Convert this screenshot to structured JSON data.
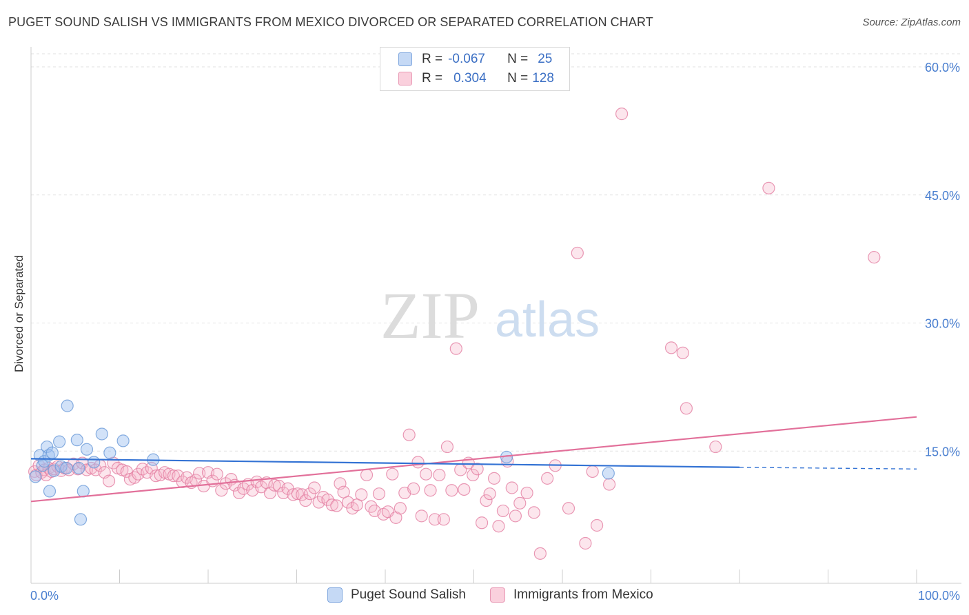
{
  "title": "PUGET SOUND SALISH VS IMMIGRANTS FROM MEXICO DIVORCED OR SEPARATED CORRELATION CHART",
  "source": "Source: ZipAtlas.com",
  "watermark": {
    "zip": "ZIP",
    "atlas": "atlas"
  },
  "legend": {
    "rows": [
      {
        "r_label": "R =",
        "r_value": "-0.067",
        "n_label": "N =",
        "n_value": "25",
        "color": "#9cbff0",
        "border": "#6a9ad8"
      },
      {
        "r_label": "R =",
        "r_value": "0.304",
        "n_label": "N =",
        "n_value": "128",
        "color": "#f7b8cc",
        "border": "#e888a8"
      }
    ]
  },
  "bottom_legend": [
    {
      "label": "Puget Sound Salish",
      "color": "#b8d0f2",
      "border": "#7ea6de"
    },
    {
      "label": "Immigrants from Mexico",
      "color": "#f7c5d5",
      "border": "#e898b4"
    }
  ],
  "chart_data": {
    "type": "scatter",
    "title": "PUGET SOUND SALISH VS IMMIGRANTS FROM MEXICO DIVORCED OR SEPARATED CORRELATION CHART",
    "xlabel": "",
    "ylabel": "Divorced or Separated",
    "xlim": [
      0,
      100
    ],
    "ylim": [
      0,
      60
    ],
    "x_tick_labels": [
      "0.0%",
      "100.0%"
    ],
    "y_ticks": [
      15,
      30,
      45,
      60
    ],
    "y_tick_labels": [
      "15.0%",
      "30.0%",
      "45.0%",
      "60.0%"
    ],
    "grid": true,
    "legend_position": "top-center",
    "series": [
      {
        "name": "Puget Sound Salish",
        "color": "#6a9ad8",
        "fill": "rgba(156,191,240,0.45)",
        "trend": {
          "x0": 0,
          "y0": 14.1,
          "x1": 80,
          "y1": 13.1,
          "dash_to": 100,
          "dash_y": 12.9
        },
        "points": [
          [
            0.5,
            12.0
          ],
          [
            1.0,
            14.5
          ],
          [
            1.3,
            13.3
          ],
          [
            1.5,
            13.8
          ],
          [
            1.8,
            15.5
          ],
          [
            2.0,
            14.5
          ],
          [
            2.1,
            10.3
          ],
          [
            2.4,
            14.8
          ],
          [
            2.6,
            12.7
          ],
          [
            3.2,
            16.1
          ],
          [
            3.4,
            13.2
          ],
          [
            4.0,
            13.0
          ],
          [
            4.1,
            20.3
          ],
          [
            5.2,
            16.3
          ],
          [
            5.4,
            13.0
          ],
          [
            5.6,
            7.0
          ],
          [
            5.9,
            10.3
          ],
          [
            6.3,
            15.2
          ],
          [
            7.1,
            13.7
          ],
          [
            8.0,
            17.0
          ],
          [
            8.9,
            14.8
          ],
          [
            10.4,
            16.2
          ],
          [
            13.8,
            14.0
          ],
          [
            53.7,
            14.3
          ],
          [
            65.2,
            12.4
          ]
        ]
      },
      {
        "name": "Immigrants from Mexico",
        "color": "#e47fa3",
        "fill": "rgba(247,184,204,0.35)",
        "trend": {
          "x0": 0,
          "y0": 9.1,
          "x1": 100,
          "y1": 19.0
        },
        "points": [
          [
            0.4,
            12.6
          ],
          [
            0.6,
            12.2
          ],
          [
            0.9,
            13.3
          ],
          [
            1.2,
            12.5
          ],
          [
            1.5,
            12.8
          ],
          [
            1.7,
            12.2
          ],
          [
            2.0,
            13.0
          ],
          [
            2.3,
            12.6
          ],
          [
            2.6,
            12.9
          ],
          [
            3.0,
            13.2
          ],
          [
            3.4,
            12.7
          ],
          [
            3.8,
            13.0
          ],
          [
            4.3,
            12.8
          ],
          [
            4.8,
            13.5
          ],
          [
            5.3,
            12.9
          ],
          [
            5.8,
            13.6
          ],
          [
            6.3,
            12.8
          ],
          [
            6.8,
            13.0
          ],
          [
            7.3,
            12.8
          ],
          [
            7.8,
            13.3
          ],
          [
            8.3,
            12.5
          ],
          [
            8.8,
            11.5
          ],
          [
            9.3,
            13.6
          ],
          [
            9.8,
            13.0
          ],
          [
            10.3,
            12.8
          ],
          [
            10.8,
            12.6
          ],
          [
            11.2,
            11.7
          ],
          [
            11.7,
            11.9
          ],
          [
            12.1,
            12.3
          ],
          [
            12.6,
            12.9
          ],
          [
            13.1,
            12.5
          ],
          [
            13.6,
            13.0
          ],
          [
            14.1,
            12.1
          ],
          [
            14.6,
            12.2
          ],
          [
            15.1,
            12.5
          ],
          [
            15.6,
            12.3
          ],
          [
            16.1,
            12.1
          ],
          [
            16.6,
            12.1
          ],
          [
            17.1,
            11.4
          ],
          [
            17.6,
            11.9
          ],
          [
            18.1,
            11.3
          ],
          [
            18.6,
            11.6
          ],
          [
            19.0,
            12.4
          ],
          [
            19.5,
            10.9
          ],
          [
            20.0,
            12.5
          ],
          [
            20.5,
            11.5
          ],
          [
            21.0,
            12.3
          ],
          [
            21.5,
            10.4
          ],
          [
            22.0,
            11.2
          ],
          [
            22.6,
            11.7
          ],
          [
            23.0,
            11.0
          ],
          [
            23.5,
            10.1
          ],
          [
            24.0,
            10.6
          ],
          [
            24.5,
            11.1
          ],
          [
            25.0,
            10.4
          ],
          [
            25.5,
            11.4
          ],
          [
            26.0,
            10.8
          ],
          [
            26.6,
            11.3
          ],
          [
            27.0,
            10.1
          ],
          [
            27.5,
            11.0
          ],
          [
            28.0,
            10.9
          ],
          [
            28.5,
            10.1
          ],
          [
            29.0,
            10.6
          ],
          [
            29.6,
            9.9
          ],
          [
            30.1,
            10.0
          ],
          [
            30.6,
            9.9
          ],
          [
            31.0,
            9.2
          ],
          [
            31.5,
            10.0
          ],
          [
            32.0,
            10.7
          ],
          [
            32.5,
            9.0
          ],
          [
            33.0,
            9.6
          ],
          [
            33.5,
            9.3
          ],
          [
            34.0,
            8.7
          ],
          [
            34.5,
            8.6
          ],
          [
            34.9,
            11.2
          ],
          [
            35.3,
            10.2
          ],
          [
            35.8,
            9.0
          ],
          [
            36.3,
            8.3
          ],
          [
            36.8,
            8.7
          ],
          [
            37.3,
            9.9
          ],
          [
            37.9,
            12.2
          ],
          [
            38.4,
            8.5
          ],
          [
            38.8,
            8.0
          ],
          [
            39.3,
            10.0
          ],
          [
            39.8,
            7.6
          ],
          [
            40.3,
            7.9
          ],
          [
            40.8,
            12.3
          ],
          [
            41.2,
            7.2
          ],
          [
            41.7,
            8.3
          ],
          [
            42.2,
            10.1
          ],
          [
            42.7,
            16.9
          ],
          [
            43.2,
            10.6
          ],
          [
            43.7,
            13.7
          ],
          [
            44.1,
            7.4
          ],
          [
            44.6,
            12.3
          ],
          [
            45.1,
            10.4
          ],
          [
            45.6,
            7.0
          ],
          [
            46.1,
            12.2
          ],
          [
            46.6,
            7.0
          ],
          [
            47.0,
            15.5
          ],
          [
            47.5,
            10.4
          ],
          [
            48.0,
            27.0
          ],
          [
            48.5,
            12.8
          ],
          [
            48.9,
            10.5
          ],
          [
            49.4,
            13.6
          ],
          [
            49.9,
            12.2
          ],
          [
            50.4,
            12.9
          ],
          [
            50.9,
            6.6
          ],
          [
            51.4,
            9.2
          ],
          [
            51.8,
            10.0
          ],
          [
            52.3,
            11.8
          ],
          [
            52.8,
            6.2
          ],
          [
            53.3,
            8.0
          ],
          [
            53.8,
            13.8
          ],
          [
            54.3,
            10.7
          ],
          [
            54.7,
            7.4
          ],
          [
            55.2,
            8.9
          ],
          [
            56.0,
            10.1
          ],
          [
            56.8,
            7.8
          ],
          [
            57.5,
            3.0
          ],
          [
            58.3,
            11.8
          ],
          [
            59.2,
            13.3
          ],
          [
            60.7,
            8.3
          ],
          [
            61.7,
            38.2
          ],
          [
            62.6,
            4.2
          ],
          [
            63.4,
            12.6
          ],
          [
            63.9,
            6.3
          ],
          [
            65.3,
            11.1
          ],
          [
            66.7,
            54.5
          ],
          [
            72.3,
            27.1
          ],
          [
            73.6,
            26.5
          ],
          [
            74.0,
            20.0
          ],
          [
            77.3,
            15.5
          ],
          [
            83.3,
            45.8
          ],
          [
            95.2,
            37.7
          ]
        ]
      }
    ]
  }
}
